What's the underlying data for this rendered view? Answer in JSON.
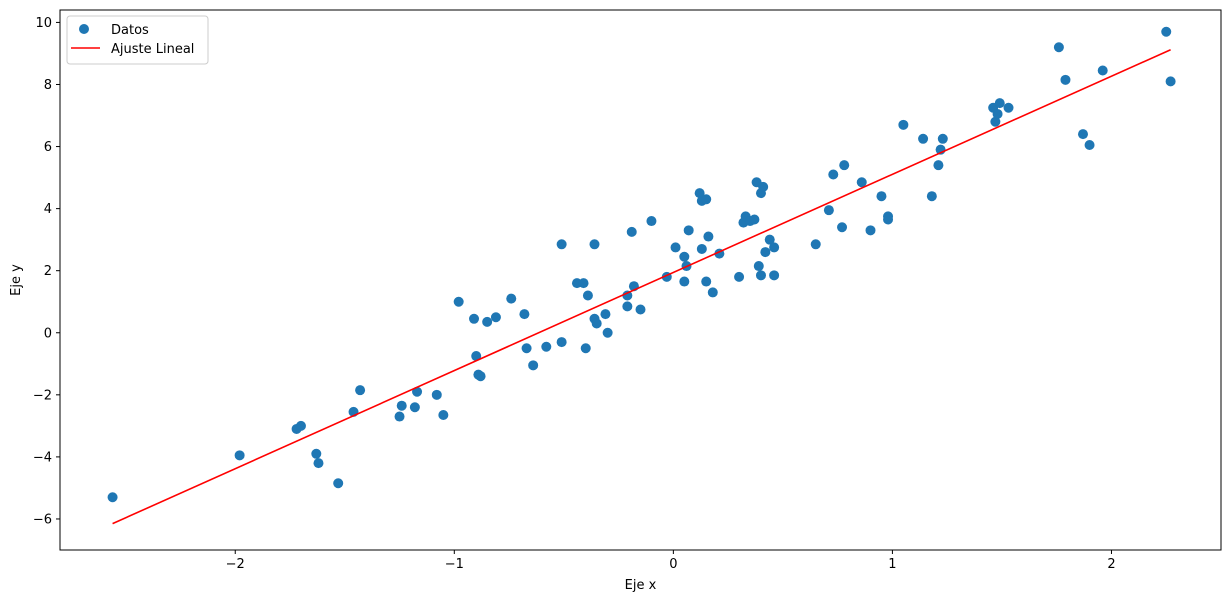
{
  "chart_data": {
    "type": "scatter",
    "xlabel": "Eje x",
    "ylabel": "Eje y",
    "xlim": [
      -2.8,
      2.5
    ],
    "ylim": [
      -7,
      10.4
    ],
    "xticks": [
      -2,
      -1,
      0,
      1,
      2
    ],
    "xtick_labels": [
      "−2",
      "−1",
      "0",
      "1",
      "2"
    ],
    "yticks": [
      -6,
      -4,
      -2,
      0,
      2,
      4,
      6,
      8,
      10
    ],
    "ytick_labels": [
      "−6",
      "−4",
      "−2",
      "0",
      "2",
      "4",
      "6",
      "8",
      "10"
    ],
    "grid": false,
    "legend_position": "top-left",
    "series": [
      {
        "name": "Datos",
        "kind": "scatter",
        "color": "#1f77b4",
        "x": [
          -2.56,
          -1.98,
          -1.72,
          -1.7,
          -1.63,
          -1.62,
          -1.53,
          -1.46,
          -1.43,
          -1.25,
          -1.24,
          -1.18,
          -1.17,
          -1.08,
          -1.05,
          -0.98,
          -0.91,
          -0.9,
          -0.89,
          -0.88,
          -0.85,
          -0.81,
          -0.74,
          -0.68,
          -0.67,
          -0.64,
          -0.58,
          -0.51,
          -0.51,
          -0.44,
          -0.41,
          -0.4,
          -0.39,
          -0.36,
          -0.36,
          -0.35,
          -0.31,
          -0.3,
          -0.21,
          -0.21,
          -0.19,
          -0.18,
          -0.15,
          -0.1,
          -0.03,
          0.01,
          0.05,
          0.05,
          0.06,
          0.07,
          0.12,
          0.13,
          0.13,
          0.15,
          0.15,
          0.16,
          0.18,
          0.21,
          0.3,
          0.32,
          0.33,
          0.35,
          0.37,
          0.38,
          0.39,
          0.4,
          0.4,
          0.41,
          0.42,
          0.44,
          0.46,
          0.46,
          0.65,
          0.71,
          0.73,
          0.77,
          0.78,
          0.86,
          0.9,
          0.95,
          0.98,
          0.98,
          1.05,
          1.14,
          1.18,
          1.21,
          1.22,
          1.23,
          1.46,
          1.47,
          1.48,
          1.49,
          1.53,
          1.76,
          1.79,
          1.87,
          1.9,
          1.96,
          2.25,
          2.27
        ],
        "y": [
          -5.3,
          -3.95,
          -3.1,
          -3.0,
          -3.9,
          -4.2,
          -4.85,
          -2.55,
          -1.85,
          -2.7,
          -2.35,
          -2.4,
          -1.9,
          -2.0,
          -2.65,
          1.0,
          0.45,
          -0.75,
          -1.35,
          -1.4,
          0.35,
          0.5,
          1.1,
          0.6,
          -0.5,
          -1.05,
          -0.45,
          2.85,
          -0.3,
          1.6,
          1.6,
          -0.5,
          1.2,
          2.85,
          0.45,
          0.3,
          0.6,
          0.0,
          0.85,
          1.2,
          3.25,
          1.5,
          0.75,
          3.6,
          1.8,
          2.75,
          2.45,
          1.65,
          2.15,
          3.3,
          4.5,
          4.25,
          2.7,
          4.3,
          1.65,
          3.1,
          1.3,
          2.55,
          1.8,
          3.55,
          3.75,
          3.6,
          3.65,
          4.85,
          2.15,
          1.85,
          4.5,
          4.7,
          2.6,
          3.0,
          1.85,
          2.75,
          2.85,
          3.95,
          5.1,
          3.4,
          5.4,
          4.85,
          3.3,
          4.4,
          3.75,
          3.65,
          6.7,
          6.25,
          4.4,
          5.4,
          5.9,
          6.25,
          7.25,
          6.8,
          7.05,
          7.4,
          7.25,
          9.2,
          8.15,
          6.4,
          6.05,
          8.45,
          9.7,
          8.1
        ]
      },
      {
        "name": "Ajuste Lineal",
        "kind": "line",
        "color": "#ff0000",
        "x": [
          -2.56,
          2.27
        ],
        "y": [
          -6.15,
          9.12
        ]
      }
    ]
  }
}
